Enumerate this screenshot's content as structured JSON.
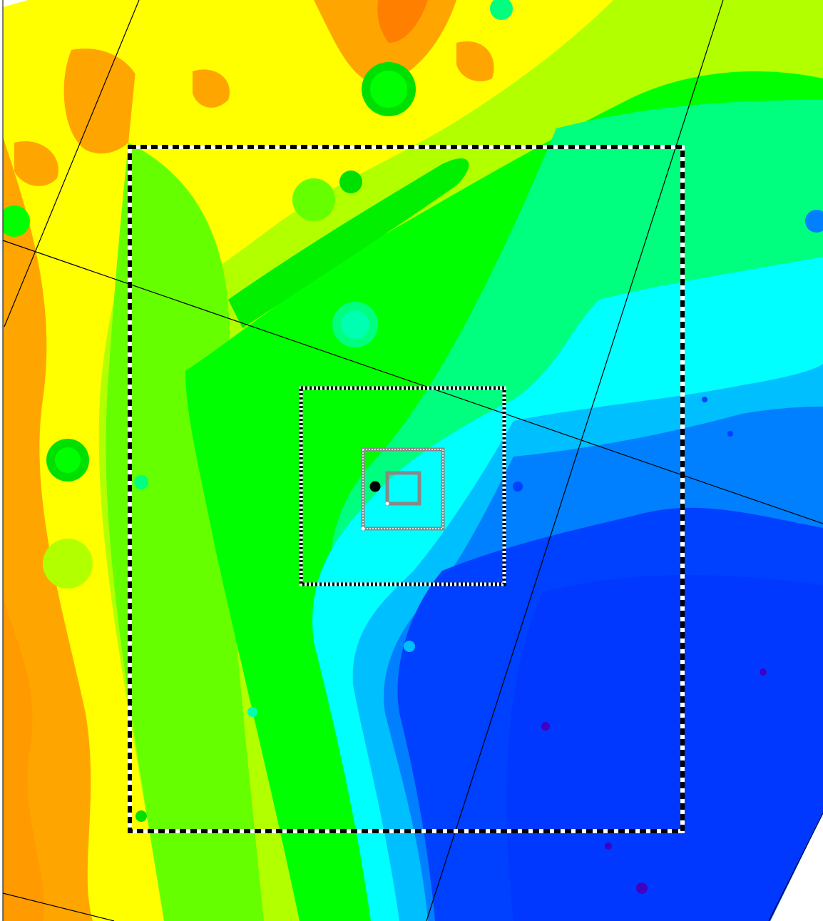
{
  "map": {
    "kind": "topographic-elevation",
    "colors": {
      "nodata": "#d0d0d0",
      "background": "#ffffff",
      "orange_dark": "#ff7f00",
      "orange": "#ffa500",
      "yellow": "#ffff00",
      "yellow_green": "#b2ff00",
      "light_green": "#66ff00",
      "green": "#00ff00",
      "spring_green": "#00ff7f",
      "aqua_green": "#00ffb0",
      "cyan": "#00ffff",
      "sky": "#00bfff",
      "azure": "#0080ff",
      "blue": "#0040ff",
      "deep_blue": "#0000ff",
      "violet": "#4000c0",
      "frame": "#000000",
      "box_gray": "#888888"
    },
    "grid_lines": 6,
    "nested_boxes": [
      "outer-region-box",
      "middle-region-box",
      "inner-region-box",
      "core-region-box"
    ],
    "marker": "location-marker"
  }
}
